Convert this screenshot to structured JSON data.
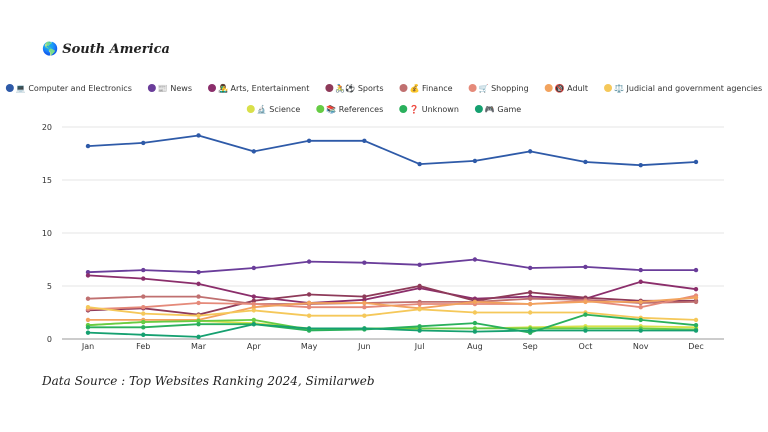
{
  "title": {
    "icon": "🌎",
    "text": "South America"
  },
  "source": "Data Source : Top Websites Ranking 2024, Similarweb",
  "chart_data": {
    "type": "line",
    "title": "South America",
    "xlabel": "",
    "ylabel": "",
    "ylim": [
      0,
      20
    ],
    "yticks": [
      0,
      5,
      10,
      15,
      20
    ],
    "grid": true,
    "legend_position": "top",
    "categories": [
      "Jan",
      "Feb",
      "Mar",
      "Apr",
      "May",
      "Jun",
      "Jul",
      "Aug",
      "Sep",
      "Oct",
      "Nov",
      "Dec"
    ],
    "series": [
      {
        "name": "💻 Computer and Electronics",
        "color": "#2e5aa8",
        "values": [
          18.2,
          18.5,
          19.2,
          17.7,
          18.7,
          18.7,
          16.5,
          16.8,
          17.7,
          16.7,
          16.4,
          16.7
        ]
      },
      {
        "name": "📰 News",
        "color": "#6a3d9a",
        "values": [
          6.3,
          6.5,
          6.3,
          6.7,
          7.3,
          7.2,
          7.0,
          7.5,
          6.7,
          6.8,
          6.5,
          6.5
        ]
      },
      {
        "name": "👨‍🎤 Arts, Entertainment",
        "color": "#8b2e6b",
        "values": [
          6.0,
          5.7,
          5.2,
          4.0,
          3.4,
          3.7,
          4.8,
          3.8,
          4.0,
          3.8,
          5.4,
          4.7
        ]
      },
      {
        "name": "🚴⚽ Sports",
        "color": "#8e3a59",
        "values": [
          2.7,
          2.9,
          2.3,
          3.6,
          4.2,
          4.0,
          5.0,
          3.6,
          4.4,
          3.9,
          3.6,
          3.6
        ]
      },
      {
        "name": "💰 Finance",
        "color": "#c07070",
        "values": [
          3.8,
          4.0,
          4.0,
          3.3,
          3.3,
          3.4,
          3.5,
          3.5,
          3.8,
          3.7,
          3.4,
          3.5
        ]
      },
      {
        "name": "🛒 Shopping",
        "color": "#e58a7a",
        "values": [
          2.8,
          3.0,
          3.4,
          3.3,
          3.0,
          3.0,
          3.3,
          3.3,
          3.3,
          3.6,
          3.0,
          4.1
        ]
      },
      {
        "name": "🔞 Adult",
        "color": "#f2a35e",
        "values": [
          1.8,
          1.8,
          1.8,
          3.0,
          3.4,
          3.4,
          2.9,
          3.5,
          3.3,
          3.5,
          3.5,
          3.9
        ]
      },
      {
        "name": "⚖️ Judicial and government agencies",
        "color": "#f5c85a",
        "values": [
          3.0,
          2.4,
          2.2,
          2.7,
          2.2,
          2.2,
          2.8,
          2.5,
          2.5,
          2.5,
          2.0,
          1.8
        ]
      },
      {
        "name": "🔬 Science",
        "color": "#d9e04a",
        "values": [
          1.3,
          1.6,
          1.7,
          1.5,
          1.0,
          1.0,
          1.0,
          1.0,
          1.1,
          1.2,
          1.2,
          1.1
        ]
      },
      {
        "name": "📚 References",
        "color": "#66cc44",
        "values": [
          1.3,
          1.6,
          1.7,
          1.8,
          0.9,
          1.0,
          1.0,
          1.0,
          1.0,
          1.0,
          1.0,
          0.9
        ]
      },
      {
        "name": "❓ Unknown",
        "color": "#2ab05c",
        "values": [
          1.1,
          1.1,
          1.4,
          1.4,
          0.8,
          0.9,
          1.2,
          1.5,
          0.6,
          2.3,
          1.8,
          1.3
        ]
      },
      {
        "name": "🎮 Game",
        "color": "#15a070",
        "values": [
          0.6,
          0.4,
          0.2,
          1.4,
          1.0,
          1.0,
          0.8,
          0.7,
          0.8,
          0.8,
          0.8,
          0.8
        ]
      }
    ]
  }
}
